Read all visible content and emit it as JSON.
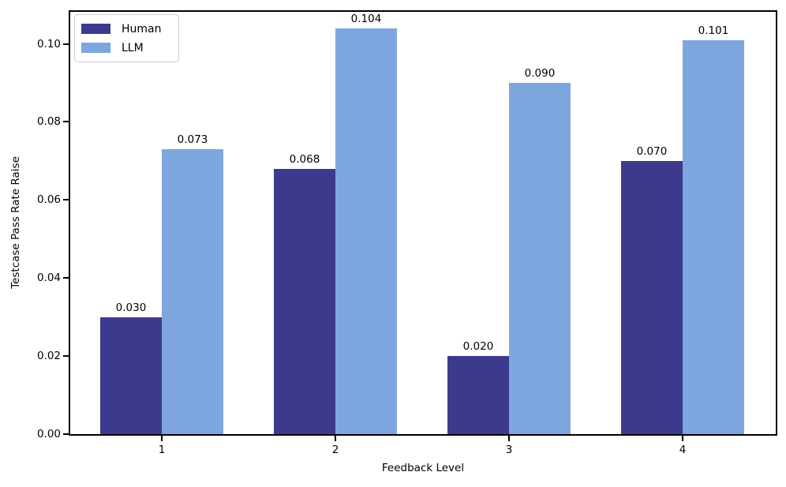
{
  "figure": {
    "background": "#ffffff"
  },
  "chart_data": {
    "type": "bar",
    "title": "",
    "categories": [
      "1",
      "2",
      "3",
      "4"
    ],
    "series": [
      {
        "name": "Human",
        "color": "#3d3a8d",
        "values": [
          0.03,
          0.068,
          0.02,
          0.07
        ],
        "value_labels": [
          "0.030",
          "0.068",
          "0.020",
          "0.070"
        ]
      },
      {
        "name": "LLM",
        "color": "#7ea6de",
        "values": [
          0.073,
          0.104,
          0.09,
          0.101
        ],
        "value_labels": [
          "0.073",
          "0.104",
          "0.090",
          "0.101"
        ]
      }
    ],
    "xlabel": "Feedback Level",
    "ylabel": "Testcase Pass Rate Raise",
    "ylim": [
      0,
      0.109
    ],
    "yticks": [
      0.0,
      0.02,
      0.04,
      0.06,
      0.08,
      0.1
    ],
    "ytick_labels": [
      "0.00",
      "0.02",
      "0.04",
      "0.06",
      "0.08",
      "0.10"
    ],
    "legend": {
      "position": "upper left",
      "entries": [
        "Human",
        "LLM"
      ]
    },
    "grid": false,
    "axis_color": "#000000",
    "text_color": "#000000",
    "legend_border_color": "#cccccc"
  }
}
